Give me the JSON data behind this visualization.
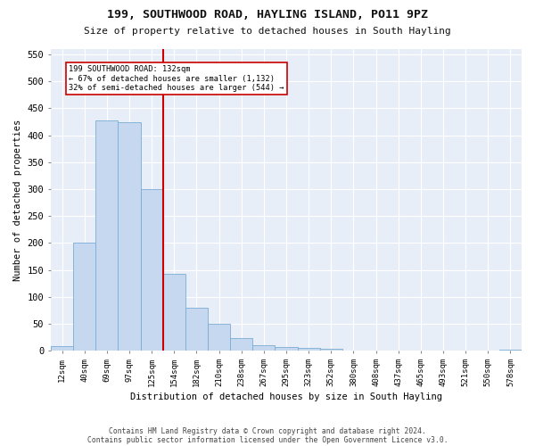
{
  "title": "199, SOUTHWOOD ROAD, HAYLING ISLAND, PO11 9PZ",
  "subtitle": "Size of property relative to detached houses in South Hayling",
  "xlabel": "Distribution of detached houses by size in South Hayling",
  "ylabel": "Number of detached properties",
  "bin_labels": [
    "12sqm",
    "40sqm",
    "69sqm",
    "97sqm",
    "125sqm",
    "154sqm",
    "182sqm",
    "210sqm",
    "238sqm",
    "267sqm",
    "295sqm",
    "323sqm",
    "352sqm",
    "380sqm",
    "408sqm",
    "437sqm",
    "465sqm",
    "493sqm",
    "521sqm",
    "550sqm",
    "578sqm"
  ],
  "bar_values": [
    8,
    201,
    428,
    425,
    300,
    143,
    80,
    50,
    23,
    11,
    7,
    5,
    4,
    0,
    0,
    0,
    0,
    0,
    0,
    0,
    2
  ],
  "bar_color": "#c5d8f0",
  "bar_edge_color": "#7aadd4",
  "vline_x": 4.5,
  "subject_line_label": "199 SOUTHWOOD ROAD: 132sqm",
  "annotation_line1": "← 67% of detached houses are smaller (1,132)",
  "annotation_line2": "32% of semi-detached houses are larger (544) →",
  "vline_color": "#cc0000",
  "ylim": [
    0,
    560
  ],
  "yticks": [
    0,
    50,
    100,
    150,
    200,
    250,
    300,
    350,
    400,
    450,
    500,
    550
  ],
  "background_color": "#e8eef8",
  "grid_color": "#ffffff",
  "fig_background": "#ffffff",
  "footer_line1": "Contains HM Land Registry data © Crown copyright and database right 2024.",
  "footer_line2": "Contains public sector information licensed under the Open Government Licence v3.0."
}
